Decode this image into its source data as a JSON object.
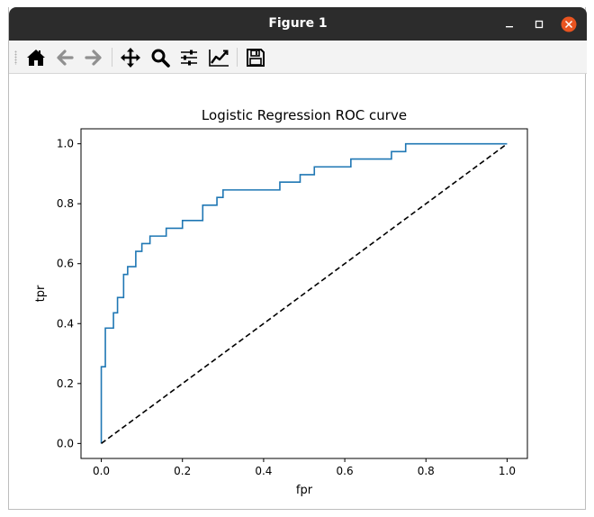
{
  "window": {
    "title": "Figure 1",
    "titlebar_color": "#2c2c2c",
    "close_color": "#e95420"
  },
  "toolbar": {
    "buttons": [
      "home-icon",
      "back-arrow-icon",
      "forward-arrow-icon",
      "pan-icon",
      "zoom-icon",
      "configure-subplots-icon",
      "edit-axis-icon",
      "save-icon"
    ]
  },
  "chart_data": {
    "type": "line",
    "title": "Logistic Regression ROC curve",
    "xlabel": "fpr",
    "ylabel": "tpr",
    "xlim": [
      -0.05,
      1.05
    ],
    "ylim": [
      -0.05,
      1.05
    ],
    "xticks": [
      "0.0",
      "0.2",
      "0.4",
      "0.6",
      "0.8",
      "1.0"
    ],
    "yticks": [
      "0.0",
      "0.2",
      "0.4",
      "0.6",
      "0.8",
      "1.0"
    ],
    "grid": false,
    "series": [
      {
        "style": "step",
        "color": "#1f77b4",
        "x": [
          0.0,
          0.0,
          0.01,
          0.01,
          0.03,
          0.03,
          0.04,
          0.04,
          0.055,
          0.055,
          0.065,
          0.065,
          0.085,
          0.085,
          0.1,
          0.1,
          0.12,
          0.12,
          0.16,
          0.16,
          0.2,
          0.2,
          0.25,
          0.25,
          0.285,
          0.285,
          0.3,
          0.3,
          0.44,
          0.44,
          0.49,
          0.49,
          0.525,
          0.525,
          0.615,
          0.615,
          0.715,
          0.715,
          0.75,
          0.75,
          0.84,
          0.84,
          1.0
        ],
        "y": [
          0.0,
          0.256,
          0.256,
          0.385,
          0.385,
          0.436,
          0.436,
          0.487,
          0.487,
          0.564,
          0.564,
          0.59,
          0.59,
          0.641,
          0.641,
          0.667,
          0.667,
          0.692,
          0.692,
          0.718,
          0.718,
          0.744,
          0.744,
          0.795,
          0.795,
          0.821,
          0.821,
          0.846,
          0.846,
          0.872,
          0.872,
          0.897,
          0.897,
          0.923,
          0.923,
          0.949,
          0.949,
          0.974,
          0.974,
          1.0,
          1.0,
          1.0,
          1.0
        ]
      },
      {
        "style": "dashed",
        "color": "#000000",
        "x": [
          0.0,
          1.0
        ],
        "y": [
          0.0,
          1.0
        ]
      }
    ]
  }
}
